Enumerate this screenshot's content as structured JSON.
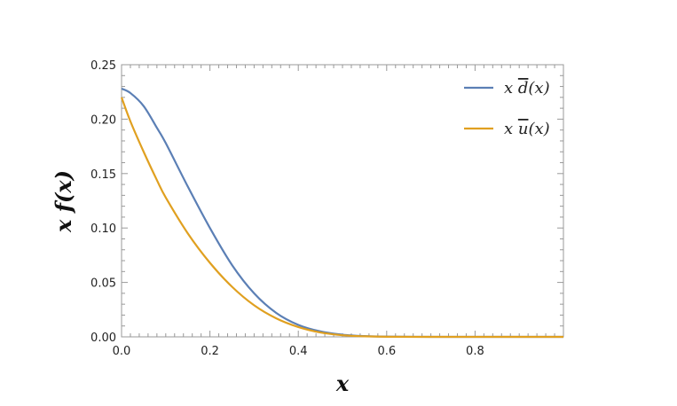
{
  "chart_data": {
    "type": "line",
    "xlabel": "x",
    "ylabel": "x f(x)",
    "xlim": [
      0,
      1.0
    ],
    "ylim": [
      0,
      0.25
    ],
    "xticks": [
      0.0,
      0.2,
      0.4,
      0.6,
      0.8
    ],
    "xtick_labels": [
      "0.0",
      "0.2",
      "0.4",
      "0.6",
      "0.8"
    ],
    "yticks": [
      0.0,
      0.05,
      0.1,
      0.15,
      0.2,
      0.25
    ],
    "ytick_labels": [
      "0.00",
      "0.05",
      "0.10",
      "0.15",
      "0.20",
      "0.25"
    ],
    "grid": false,
    "legend_position": "top-right",
    "colors": {
      "dbar": "#5b7fb5",
      "ubar": "#e0a020"
    },
    "series": [
      {
        "name": "x d̄(x)",
        "prefix": "x ",
        "bar_letter": "d",
        "suffix": "(x)",
        "color_key": "dbar",
        "x": [
          0.0,
          0.02,
          0.05,
          0.08,
          0.1,
          0.15,
          0.2,
          0.25,
          0.3,
          0.35,
          0.4,
          0.45,
          0.5,
          0.55,
          0.6,
          0.7,
          0.8,
          0.9,
          1.0
        ],
        "y": [
          0.228,
          0.224,
          0.212,
          0.192,
          0.178,
          0.138,
          0.1,
          0.066,
          0.04,
          0.022,
          0.011,
          0.005,
          0.002,
          0.0007,
          0.0002,
          0.0,
          0.0,
          0.0,
          0.0
        ]
      },
      {
        "name": "x ū(x)",
        "prefix": "x ",
        "bar_letter": "u",
        "suffix": "(x)",
        "color_key": "ubar",
        "x": [
          0.0,
          0.02,
          0.05,
          0.08,
          0.1,
          0.15,
          0.2,
          0.25,
          0.3,
          0.35,
          0.4,
          0.45,
          0.5,
          0.55,
          0.6,
          0.7,
          0.8,
          0.9,
          1.0
        ],
        "y": [
          0.22,
          0.198,
          0.17,
          0.144,
          0.128,
          0.095,
          0.068,
          0.046,
          0.029,
          0.017,
          0.009,
          0.004,
          0.0015,
          0.0005,
          0.0001,
          0.0,
          0.0,
          0.0,
          0.0
        ]
      }
    ]
  }
}
